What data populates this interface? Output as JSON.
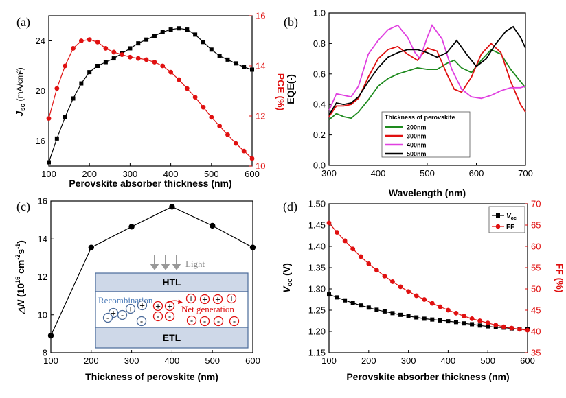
{
  "chart_data": [
    {
      "panel": "(a)",
      "type": "line",
      "xlabel": "Perovskite absorber thickness (nm)",
      "ylabel": "Jsc (mA/cm²)",
      "ylabel_right": "PCE (%)",
      "xlim": [
        100,
        600
      ],
      "ylim": [
        14,
        26
      ],
      "ylim_right": [
        10,
        16
      ],
      "x_ticks": [
        "100",
        "200",
        "300",
        "400",
        "500",
        "600"
      ],
      "y_ticks": [
        "16",
        "20",
        "24"
      ],
      "y_ticks_right": [
        "10",
        "12",
        "14",
        "16"
      ],
      "series": [
        {
          "axis": "left",
          "marker": "square",
          "color": "#000000",
          "x": [
            100,
            120,
            140,
            160,
            180,
            200,
            220,
            240,
            260,
            280,
            300,
            320,
            340,
            360,
            380,
            400,
            420,
            440,
            460,
            480,
            500,
            520,
            540,
            560,
            580,
            600
          ],
          "values": [
            14.3,
            16.2,
            17.9,
            19.4,
            20.6,
            21.5,
            22.0,
            22.3,
            22.6,
            23.0,
            23.4,
            23.8,
            24.1,
            24.4,
            24.7,
            24.9,
            25.0,
            24.9,
            24.5,
            23.9,
            23.3,
            22.8,
            22.5,
            22.2,
            21.9,
            21.7
          ]
        },
        {
          "axis": "right",
          "marker": "circle",
          "color": "#e01010",
          "x": [
            100,
            120,
            140,
            160,
            180,
            200,
            220,
            240,
            260,
            280,
            300,
            320,
            340,
            360,
            380,
            400,
            420,
            440,
            460,
            480,
            500,
            520,
            540,
            560,
            580,
            600
          ],
          "values": [
            11.9,
            13.1,
            14.0,
            14.7,
            15.0,
            15.05,
            14.95,
            14.7,
            14.55,
            14.45,
            14.35,
            14.3,
            14.25,
            14.15,
            14.0,
            13.75,
            13.45,
            13.1,
            12.75,
            12.35,
            11.95,
            11.6,
            11.25,
            10.9,
            10.6,
            10.3
          ]
        }
      ]
    },
    {
      "panel": "(b)",
      "type": "line",
      "xlabel": "Wavelength (nm)",
      "ylabel": "EQE(-)",
      "xlim": [
        300,
        700
      ],
      "ylim": [
        0,
        1
      ],
      "x_ticks": [
        "300",
        "400",
        "500",
        "600",
        "700"
      ],
      "y_ticks": [
        "0.0",
        "0.2",
        "0.4",
        "0.6",
        "0.8",
        "1.0"
      ],
      "legend_title": "Thickness of  perovskite",
      "legend_position": "lower-left",
      "series": [
        {
          "name": "200nm",
          "color": "#1e8a1e",
          "x": [
            300,
            315,
            330,
            345,
            360,
            380,
            400,
            420,
            440,
            460,
            480,
            500,
            520,
            540,
            555,
            570,
            590,
            610,
            630,
            650,
            670,
            690,
            700
          ],
          "values": [
            0.3,
            0.34,
            0.32,
            0.31,
            0.35,
            0.43,
            0.52,
            0.57,
            0.6,
            0.62,
            0.64,
            0.63,
            0.63,
            0.67,
            0.69,
            0.64,
            0.61,
            0.69,
            0.76,
            0.73,
            0.63,
            0.55,
            0.51
          ]
        },
        {
          "name": "300nm",
          "color": "#e01010",
          "x": [
            300,
            315,
            330,
            345,
            360,
            380,
            400,
            420,
            440,
            460,
            480,
            500,
            520,
            540,
            555,
            570,
            590,
            610,
            630,
            650,
            670,
            690,
            700
          ],
          "values": [
            0.32,
            0.39,
            0.39,
            0.4,
            0.44,
            0.58,
            0.7,
            0.76,
            0.78,
            0.73,
            0.69,
            0.77,
            0.75,
            0.6,
            0.5,
            0.48,
            0.58,
            0.73,
            0.8,
            0.74,
            0.55,
            0.4,
            0.35
          ]
        },
        {
          "name": "400nm",
          "color": "#e040e0",
          "x": [
            300,
            315,
            330,
            345,
            360,
            380,
            400,
            420,
            440,
            460,
            475,
            485,
            500,
            510,
            530,
            550,
            570,
            590,
            610,
            630,
            650,
            670,
            690,
            700
          ],
          "values": [
            0.36,
            0.47,
            0.46,
            0.45,
            0.52,
            0.73,
            0.82,
            0.89,
            0.92,
            0.84,
            0.74,
            0.7,
            0.84,
            0.92,
            0.83,
            0.63,
            0.5,
            0.45,
            0.44,
            0.46,
            0.49,
            0.51,
            0.51,
            0.52
          ]
        },
        {
          "name": "500nm",
          "color": "#000000",
          "x": [
            300,
            315,
            330,
            345,
            360,
            380,
            400,
            420,
            440,
            460,
            480,
            500,
            520,
            540,
            560,
            580,
            600,
            620,
            640,
            660,
            675,
            690,
            700
          ],
          "values": [
            0.33,
            0.41,
            0.4,
            0.41,
            0.45,
            0.55,
            0.64,
            0.71,
            0.74,
            0.76,
            0.76,
            0.74,
            0.71,
            0.74,
            0.82,
            0.73,
            0.65,
            0.7,
            0.8,
            0.88,
            0.91,
            0.84,
            0.77
          ]
        }
      ]
    },
    {
      "panel": "(c)",
      "type": "line",
      "xlabel": "Thickness of perovskite (nm)",
      "ylabel": "△N (10¹⁶ cm⁻²s⁻¹)",
      "xlim": [
        100,
        600
      ],
      "ylim": [
        8,
        16
      ],
      "x_ticks": [
        "100",
        "200",
        "300",
        "400",
        "500",
        "600"
      ],
      "y_ticks": [
        "8",
        "10",
        "12",
        "14",
        "16"
      ],
      "series": [
        {
          "marker": "circle",
          "color": "#000000",
          "x": [
            100,
            200,
            300,
            400,
            500,
            600
          ],
          "values": [
            8.9,
            13.55,
            14.65,
            15.7,
            14.7,
            13.55
          ]
        }
      ]
    },
    {
      "panel": "(d)",
      "type": "line",
      "xlabel": "Perovskite absorber thickness (nm)",
      "ylabel": "Voc (V)",
      "ylabel_right": "FF (%)",
      "xlim": [
        100,
        600
      ],
      "ylim": [
        1.15,
        1.5
      ],
      "ylim_right": [
        35,
        70
      ],
      "x_ticks": [
        "100",
        "200",
        "300",
        "400",
        "500",
        "600"
      ],
      "y_ticks": [
        "1.15",
        "1.20",
        "1.25",
        "1.30",
        "1.35",
        "1.40",
        "1.45",
        "1.50"
      ],
      "y_ticks_right": [
        "35",
        "40",
        "45",
        "50",
        "55",
        "60",
        "65",
        "70"
      ],
      "legend_position": "top-right",
      "series": [
        {
          "name": "Voc",
          "axis": "left",
          "marker": "square",
          "color": "#000000",
          "x": [
            100,
            120,
            140,
            160,
            180,
            200,
            220,
            240,
            260,
            280,
            300,
            320,
            340,
            360,
            380,
            400,
            420,
            440,
            460,
            480,
            500,
            520,
            540,
            560,
            580,
            600
          ],
          "values": [
            1.287,
            1.28,
            1.273,
            1.267,
            1.261,
            1.256,
            1.251,
            1.247,
            1.243,
            1.239,
            1.236,
            1.233,
            1.23,
            1.228,
            1.226,
            1.224,
            1.222,
            1.219,
            1.217,
            1.214,
            1.212,
            1.21,
            1.209,
            1.207,
            1.206,
            1.205
          ]
        },
        {
          "name": "FF",
          "axis": "right",
          "marker": "circle",
          "color": "#e01010",
          "x": [
            100,
            120,
            140,
            160,
            180,
            200,
            220,
            240,
            260,
            280,
            300,
            320,
            340,
            360,
            380,
            400,
            420,
            440,
            460,
            480,
            500,
            520,
            540,
            560,
            580,
            600
          ],
          "values": [
            65.5,
            63.3,
            61.3,
            59.4,
            57.6,
            55.9,
            54.4,
            53.0,
            51.7,
            50.5,
            49.4,
            48.4,
            47.5,
            46.6,
            45.8,
            45.0,
            44.3,
            43.6,
            43.0,
            42.5,
            42.0,
            41.5,
            41.1,
            40.8,
            40.5,
            40.3
          ]
        }
      ]
    }
  ],
  "labels": {
    "a": {
      "panel": "(a)",
      "xlabel": "Perovskite absorber thickness (nm)",
      "ylabel_main": "J",
      "ylabel_sub": "sc",
      "ylabel_rest": " (mA/cm²)",
      "ylabel_right": "PCE (%)"
    },
    "b": {
      "panel": "(b)",
      "xlabel": "Wavelength (nm)",
      "ylabel": "EQE(-)",
      "legend_title": "Thickness of  perovskite"
    },
    "c": {
      "panel": "(c)",
      "xlabel": "Thickness of perovskite (nm)",
      "ylabel_a": "△N",
      "ylabel_b": " (10",
      "ylabel_sup1": "16",
      "ylabel_c": " cm",
      "ylabel_sup2": "-2",
      "ylabel_d": "s",
      "ylabel_sup3": "-1",
      "ylabel_e": ")"
    },
    "d": {
      "panel": "(d)",
      "xlabel": "Perovskite absorber thickness (nm)",
      "ylabel_main": "V",
      "ylabel_sub": "oc",
      "ylabel_rest": " (V)",
      "ylabel_right": "FF (%)",
      "legend_voc": "V",
      "legend_voc_sub": "oc",
      "legend_ff": "FF"
    }
  },
  "inset": {
    "light": "Light",
    "htl": "HTL",
    "etl": "ETL",
    "recombination": "Recombination",
    "net_generation": "Net generation",
    "plus": "+",
    "minus": "-"
  },
  "colors": {
    "red": "#e01010",
    "green": "#1e8a1e",
    "magenta": "#e040e0",
    "black": "#000000",
    "inset_fill": "#ced8e8",
    "inset_border": "#4a6a9a",
    "recombination_text": "#4a7ab8"
  }
}
